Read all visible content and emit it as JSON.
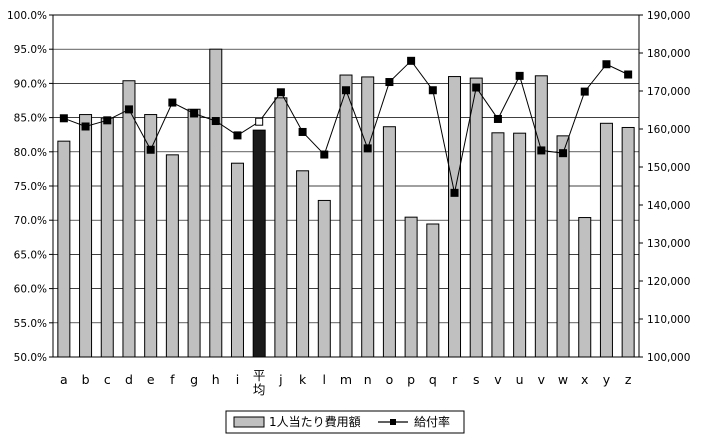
{
  "chart_data": {
    "type": "bar+line",
    "categories": [
      "a",
      "b",
      "c",
      "d",
      "e",
      "f",
      "g",
      "h",
      "i",
      "平均",
      "j",
      "k",
      "l",
      "m",
      "n",
      "o",
      "p",
      "q",
      "r",
      "s",
      "v",
      "u",
      "v",
      "w",
      "x",
      "y",
      "z"
    ],
    "series": [
      {
        "name": "1人当たり費用額",
        "type": "bar",
        "axis": "right",
        "color": "#c0c0c0",
        "highlight_color": "#1a1a1a",
        "highlight_index": 9,
        "values": [
          156800,
          163800,
          162900,
          172700,
          163800,
          153200,
          165200,
          181000,
          151000,
          159700,
          168200,
          149000,
          141200,
          174200,
          173700,
          160600,
          136800,
          135000,
          173800,
          173400,
          159000,
          158900,
          174000,
          158200,
          136700,
          161500,
          160400
        ]
      },
      {
        "name": "給付率",
        "type": "line",
        "axis": "left",
        "color": "#000000",
        "values": [
          84.9,
          83.7,
          84.6,
          86.2,
          80.3,
          87.2,
          85.6,
          84.5,
          82.4,
          84.4,
          88.7,
          82.9,
          79.6,
          89.0,
          80.5,
          90.2,
          93.3,
          89.0,
          74.0,
          89.4,
          84.8,
          91.1,
          80.2,
          79.8,
          88.8,
          92.8,
          91.3
        ]
      }
    ],
    "y_left": {
      "min": 0.5,
      "max": 1.0,
      "ticks": [
        "50.0%",
        "55.0%",
        "60.0%",
        "65.0%",
        "70.0%",
        "75.0%",
        "80.0%",
        "85.0%",
        "90.0%",
        "95.0%",
        "100.0%"
      ]
    },
    "y_right": {
      "min": 100000,
      "max": 190000,
      "ticks": [
        "100,000",
        "110,000",
        "120,000",
        "130,000",
        "140,000",
        "150,000",
        "160,000",
        "170,000",
        "180,000",
        "190,000"
      ]
    },
    "grid": "horizontal",
    "legend": {
      "position": "bottom",
      "entries": [
        "1人当たり費用額",
        "給付率"
      ]
    }
  }
}
